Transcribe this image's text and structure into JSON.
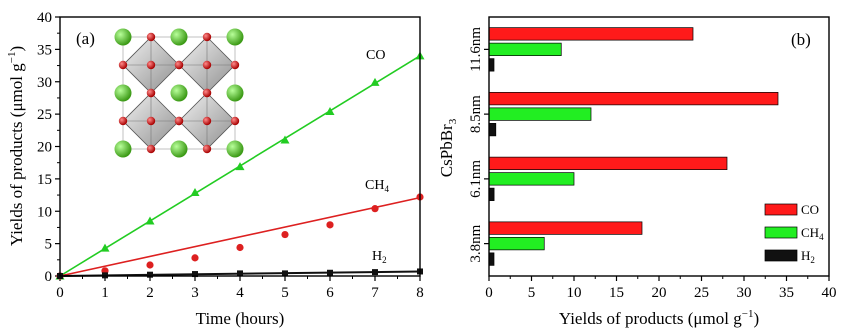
{
  "figure": {
    "panel_a_label": "(a)",
    "panel_b_label": "(b)"
  },
  "chart_data": [
    {
      "type": "scatter",
      "panel": "(a)",
      "xlabel": "Time (hours)",
      "ylabel_main": "Yields of products (μmol g",
      "ylabel_sup": "−1",
      "ylabel_close": ")",
      "xlim": [
        0,
        8
      ],
      "ylim": [
        0,
        40
      ],
      "xticks": [
        0,
        1,
        2,
        3,
        4,
        5,
        6,
        7,
        8
      ],
      "yticks": [
        0,
        5,
        10,
        15,
        20,
        25,
        30,
        35,
        40
      ],
      "inset": "crystal-structure-image",
      "x": [
        0,
        1,
        2,
        3,
        4,
        5,
        6,
        7,
        8
      ],
      "series": [
        {
          "label_main": "CO",
          "label_sub": "",
          "marker": "triangle",
          "color": "#22cc22",
          "values": [
            0,
            4.3,
            8.5,
            12.9,
            16.9,
            21.0,
            25.4,
            29.9,
            34.0
          ],
          "fit_line": [
            0,
            34.0
          ]
        },
        {
          "label_main": "CH",
          "label_sub": "4",
          "marker": "circle",
          "color": "#dd2020",
          "values": [
            0,
            0.8,
            1.7,
            2.8,
            4.4,
            6.4,
            7.9,
            10.4,
            12.2
          ],
          "fit_line": [
            0,
            12.1
          ]
        },
        {
          "label_main": "H",
          "label_sub": "2",
          "marker": "square",
          "color": "#111111",
          "values": [
            0,
            0.1,
            0.2,
            0.3,
            0.4,
            0.4,
            0.5,
            0.6,
            0.7
          ],
          "fit_line": [
            0,
            0.7
          ]
        }
      ]
    },
    {
      "type": "bar",
      "orientation": "horizontal",
      "panel": "(b)",
      "ylabel_main": "CsPbBr",
      "ylabel_sub": "3",
      "xlabel_main": "Yields of products (μmol g",
      "xlabel_sup": "−1",
      "xlabel_close": ")",
      "xlim": [
        0,
        40
      ],
      "xticks": [
        0,
        5,
        10,
        15,
        20,
        25,
        30,
        35,
        40
      ],
      "categories": [
        "3.8nm",
        "6.1nm",
        "8.5nm",
        "11.6nm"
      ],
      "series": [
        {
          "label_main": "CO",
          "label_sub": "",
          "color": "#ff1a1a",
          "values": [
            18.0,
            28.0,
            34.0,
            24.0
          ]
        },
        {
          "label_main": "CH",
          "label_sub": "4",
          "color": "#22ee22",
          "values": [
            6.5,
            10.0,
            12.0,
            8.5
          ]
        },
        {
          "label_main": "H",
          "label_sub": "2",
          "color": "#111111",
          "values": [
            0.4,
            0.6,
            0.8,
            0.5
          ]
        }
      ],
      "legend_position": "bottom-right"
    }
  ]
}
